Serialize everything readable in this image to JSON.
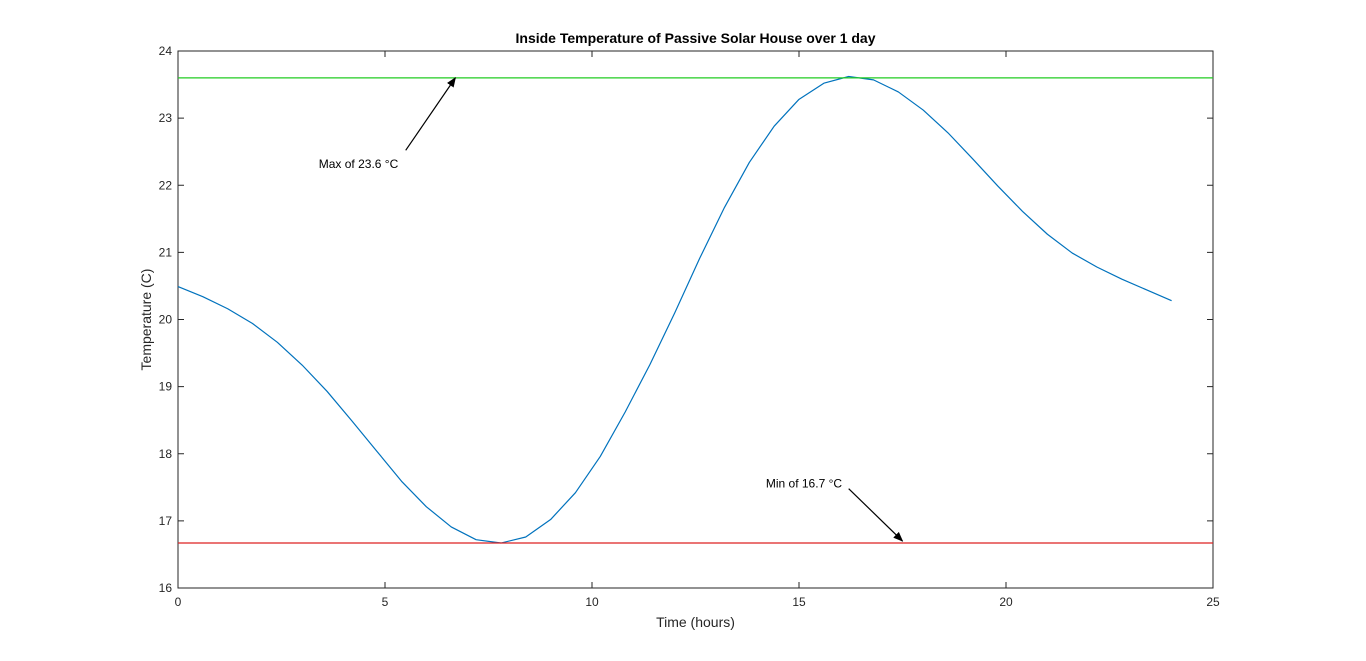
{
  "chart_data": {
    "type": "line",
    "title": "Inside Temperature of Passive Solar House over 1 day",
    "xlabel": "Time (hours)",
    "ylabel": "Temperature (C)",
    "xlim": [
      0,
      25
    ],
    "ylim": [
      16,
      24
    ],
    "xticks": [
      0,
      5,
      10,
      15,
      20,
      25
    ],
    "yticks": [
      16,
      17,
      18,
      19,
      20,
      21,
      22,
      23,
      24
    ],
    "grid": false,
    "series": [
      {
        "color": "#0072BD",
        "x": [
          0,
          0.6,
          1.2,
          1.8,
          2.4,
          3.0,
          3.6,
          4.2,
          4.8,
          5.4,
          6.0,
          6.6,
          7.2,
          7.8,
          8.4,
          9.0,
          9.6,
          10.2,
          10.8,
          11.4,
          12.0,
          12.6,
          13.2,
          13.8,
          14.4,
          15.0,
          15.6,
          16.2,
          16.8,
          17.4,
          18.0,
          18.6,
          19.2,
          19.8,
          20.4,
          21.0,
          21.6,
          22.2,
          22.8,
          23.4,
          24.0
        ],
        "y": [
          20.49,
          20.34,
          20.16,
          19.94,
          19.66,
          19.32,
          18.93,
          18.49,
          18.04,
          17.59,
          17.21,
          16.91,
          16.72,
          16.67,
          16.76,
          17.02,
          17.42,
          17.96,
          18.62,
          19.33,
          20.1,
          20.91,
          21.67,
          22.34,
          22.88,
          23.28,
          23.52,
          23.62,
          23.57,
          23.39,
          23.12,
          22.78,
          22.39,
          21.99,
          21.61,
          21.27,
          20.99,
          20.78,
          20.6,
          20.44,
          20.28
        ]
      },
      {
        "color": "#22CC22",
        "x": [
          0,
          25
        ],
        "y": [
          23.6,
          23.6
        ]
      },
      {
        "color": "#DD2222",
        "x": [
          0,
          25
        ],
        "y": [
          16.67,
          16.67
        ]
      }
    ],
    "annotations": [
      {
        "text": "Max of 23.6 °C",
        "text_x": 3.4,
        "text_y": 22.32,
        "arrow_from": [
          5.5,
          22.52
        ],
        "arrow_to": [
          6.7,
          23.6
        ]
      },
      {
        "text": "Min of 16.7 °C",
        "text_x": 14.2,
        "text_y": 17.56,
        "arrow_from": [
          16.2,
          17.48
        ],
        "arrow_to": [
          17.5,
          16.7
        ]
      }
    ]
  }
}
